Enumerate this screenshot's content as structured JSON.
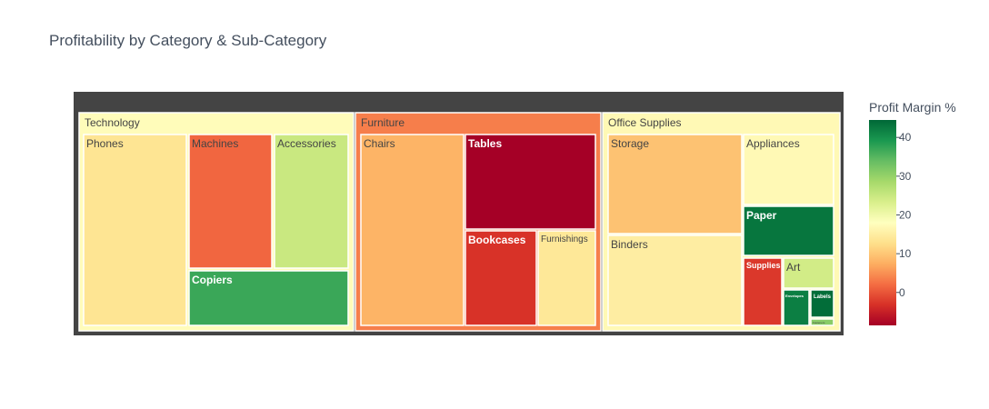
{
  "chart_data": {
    "type": "treemap",
    "title": "Profitability by Category & Sub-Category",
    "colorbar": {
      "title": "Profit Margin %",
      "min": -8.5,
      "max": 44.5,
      "ticks": [
        "0",
        "10",
        "20",
        "30",
        "40"
      ],
      "colorscale": "RdYlGn"
    },
    "root_color": "#444444",
    "categories": [
      {
        "name": "Technology",
        "margin": 17.5
      },
      {
        "name": "Furniture",
        "margin": 3.5
      },
      {
        "name": "Office Supplies",
        "margin": 17.0
      }
    ],
    "subcategories": [
      {
        "name": "Phones",
        "parent": "Technology",
        "margin": 13.5
      },
      {
        "name": "Machines",
        "parent": "Technology",
        "margin": 1.5
      },
      {
        "name": "Accessories",
        "parent": "Technology",
        "margin": 25.0
      },
      {
        "name": "Copiers",
        "parent": "Technology",
        "margin": 37.0
      },
      {
        "name": "Chairs",
        "parent": "Furniture",
        "margin": 8.0
      },
      {
        "name": "Tables",
        "parent": "Furniture",
        "margin": -8.5
      },
      {
        "name": "Bookcases",
        "parent": "Furniture",
        "margin": -3.0
      },
      {
        "name": "Furnishings",
        "parent": "Furniture",
        "margin": 14.0
      },
      {
        "name": "Storage",
        "parent": "Office Supplies",
        "margin": 9.5
      },
      {
        "name": "Appliances",
        "parent": "Office Supplies",
        "margin": 17.0
      },
      {
        "name": "Paper",
        "parent": "Office Supplies",
        "margin": 43.0
      },
      {
        "name": "Binders",
        "parent": "Office Supplies",
        "margin": 15.0
      },
      {
        "name": "Supplies",
        "parent": "Office Supplies",
        "margin": -2.5
      },
      {
        "name": "Art",
        "parent": "Office Supplies",
        "margin": 24.0
      },
      {
        "name": "Envelopes",
        "parent": "Office Supplies",
        "margin": 42.0
      },
      {
        "name": "Labels",
        "parent": "Office Supplies",
        "margin": 44.0
      },
      {
        "name": "Fasteners",
        "parent": "Office Supplies",
        "margin": 31.0
      }
    ]
  }
}
